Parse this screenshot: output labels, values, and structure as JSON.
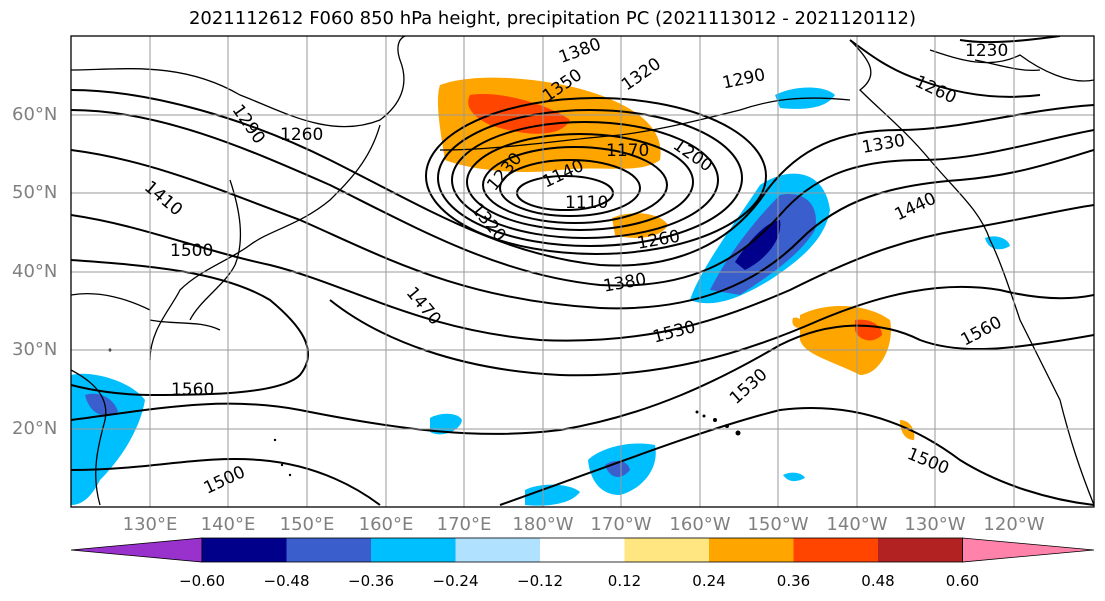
{
  "title": "2021112612 F060 850 hPa height, precipitation PC (2021113012 - 2021120112)",
  "lat_labels": [
    "60°N",
    "50°N",
    "40°N",
    "30°N",
    "20°N"
  ],
  "lon_labels": [
    "130°E",
    "140°E",
    "150°E",
    "160°E",
    "170°E",
    "180°W",
    "170°W",
    "160°W",
    "150°W",
    "140°W",
    "130°W",
    "120°W"
  ],
  "contour_labels": [
    "1380",
    "1350",
    "1320",
    "1290",
    "1230",
    "1260",
    "1290",
    "1260",
    "1410",
    "1500",
    "1230",
    "1140",
    "1170",
    "1200",
    "1110",
    "1320",
    "1260",
    "1380",
    "1470",
    "1530",
    "1330",
    "1440",
    "1560",
    "1560",
    "1530",
    "1500",
    "1500"
  ],
  "colorbar": {
    "ticks": [
      "−0.60",
      "−0.48",
      "−0.36",
      "−0.24",
      "−0.12",
      "0.12",
      "0.24",
      "0.36",
      "0.48",
      "0.60"
    ],
    "colors": [
      "#9932cc",
      "#00008b",
      "#3a5fcd",
      "#00bfff",
      "#b0e2ff",
      "#ffffff",
      "#ffe680",
      "#ffa500",
      "#ff4500",
      "#b22222",
      "#ff82ab"
    ]
  }
}
